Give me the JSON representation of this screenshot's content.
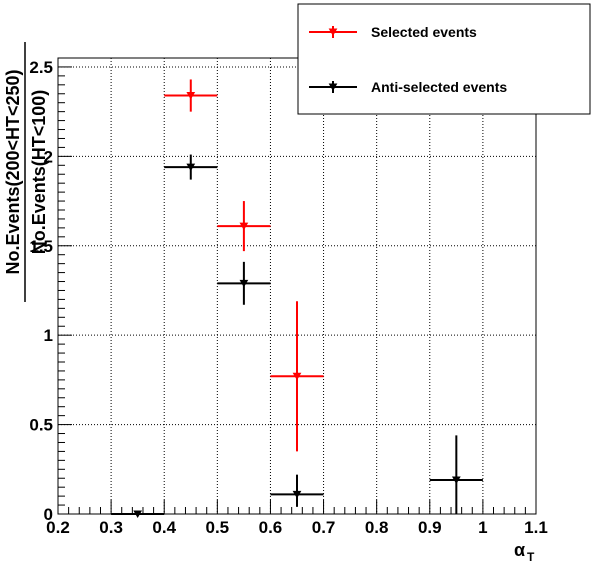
{
  "chart_data": {
    "type": "scatter",
    "xlabel": "α",
    "xlabel_sub": "T",
    "ylabel_numerator": "No.Events(200<HT<250)",
    "ylabel_denominator": "No.Events(HT<100)",
    "xlim": [
      0.2,
      1.1
    ],
    "ylim": [
      0,
      2.55
    ],
    "x_ticks": [
      "0.2",
      "0.3",
      "0.4",
      "0.5",
      "0.6",
      "0.7",
      "0.8",
      "0.9",
      "1",
      "1.1"
    ],
    "y_ticks": [
      "0",
      "0.5",
      "1",
      "1.5",
      "2",
      "2.5"
    ],
    "grid": true,
    "legend_position": "top-right",
    "series": [
      {
        "name": "Selected events",
        "color": "#ff0000",
        "points": [
          {
            "x": 0.45,
            "y": 2.34,
            "xerr": 0.05,
            "yerr_low": 0.09,
            "yerr_high": 0.09
          },
          {
            "x": 0.55,
            "y": 1.61,
            "xerr": 0.05,
            "yerr_low": 0.14,
            "yerr_high": 0.14
          },
          {
            "x": 0.65,
            "y": 0.77,
            "xerr": 0.05,
            "yerr_low": 0.42,
            "yerr_high": 0.42
          }
        ]
      },
      {
        "name": "Anti-selected events",
        "color": "#000000",
        "points": [
          {
            "x": 0.35,
            "y": 0.0,
            "xerr": 0.05,
            "yerr_low": 0.0,
            "yerr_high": 0.01
          },
          {
            "x": 0.45,
            "y": 1.94,
            "xerr": 0.05,
            "yerr_low": 0.07,
            "yerr_high": 0.07
          },
          {
            "x": 0.55,
            "y": 1.29,
            "xerr": 0.05,
            "yerr_low": 0.12,
            "yerr_high": 0.12
          },
          {
            "x": 0.65,
            "y": 0.11,
            "xerr": 0.05,
            "yerr_low": 0.07,
            "yerr_high": 0.11
          },
          {
            "x": 0.95,
            "y": 0.19,
            "xerr": 0.05,
            "yerr_low": 0.19,
            "yerr_high": 0.25
          }
        ]
      }
    ]
  }
}
